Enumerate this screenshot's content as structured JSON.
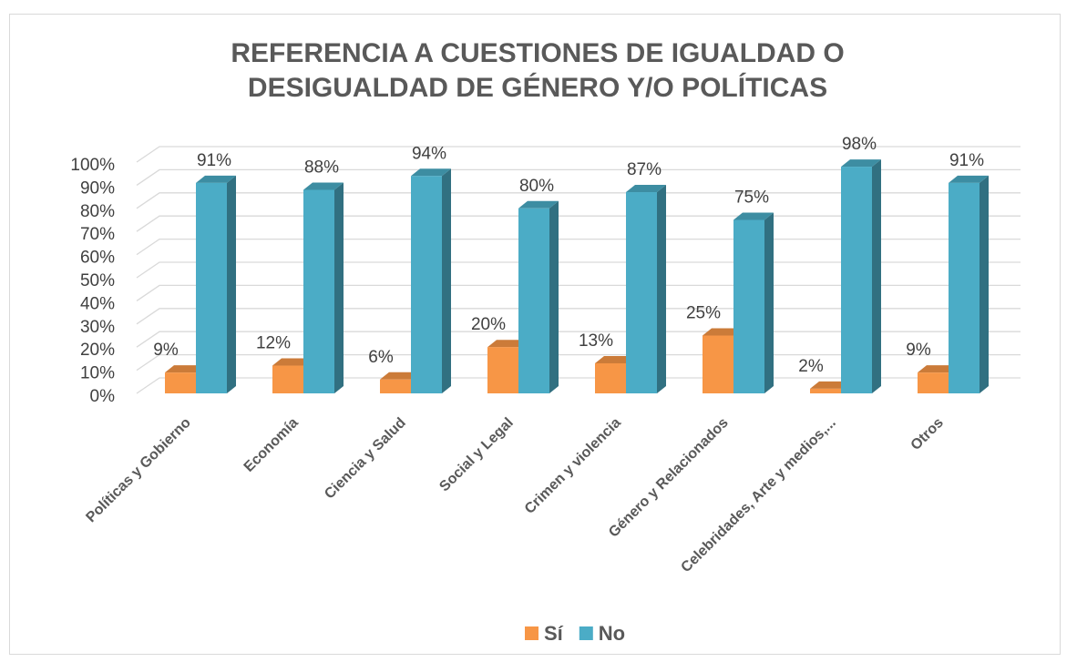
{
  "chart_data": {
    "type": "bar3d",
    "title": "REFERENCIA A CUESTIONES DE IGUALDAD O DESIGUALDAD DE GÉNERO Y/O POLÍTICAS",
    "categories": [
      "Políticas y Gobierno",
      "Economía",
      "Ciencia y Salud",
      "Social y Legal",
      "Crimen y violencia",
      "Género y Relacionados",
      "Celebridades, Arte y medios,...",
      "Otros"
    ],
    "series": [
      {
        "name": "Sí",
        "color": "#f79646",
        "values": [
          9,
          12,
          6,
          20,
          13,
          25,
          2,
          9
        ],
        "value_labels": [
          "9%",
          "12%",
          "6%",
          "20%",
          "13%",
          "25%",
          "2%",
          "9%"
        ]
      },
      {
        "name": "No",
        "color": "#4bacc6",
        "values": [
          91,
          88,
          94,
          80,
          87,
          75,
          98,
          91
        ],
        "value_labels": [
          "91%",
          "88%",
          "94%",
          "80%",
          "87%",
          "75%",
          "98%",
          "91%"
        ]
      }
    ],
    "ylim": [
      0,
      100
    ],
    "yticks": [
      {
        "value": 0,
        "label": "0%"
      },
      {
        "value": 10,
        "label": "10%"
      },
      {
        "value": 20,
        "label": "20%"
      },
      {
        "value": 30,
        "label": "30%"
      },
      {
        "value": 40,
        "label": "40%"
      },
      {
        "value": 50,
        "label": "50%"
      },
      {
        "value": 60,
        "label": "60%"
      },
      {
        "value": 70,
        "label": "70%"
      },
      {
        "value": 80,
        "label": "80%"
      },
      {
        "value": 90,
        "label": "90%"
      },
      {
        "value": 100,
        "label": "100%"
      }
    ],
    "grid": true,
    "legend": "bottom"
  }
}
